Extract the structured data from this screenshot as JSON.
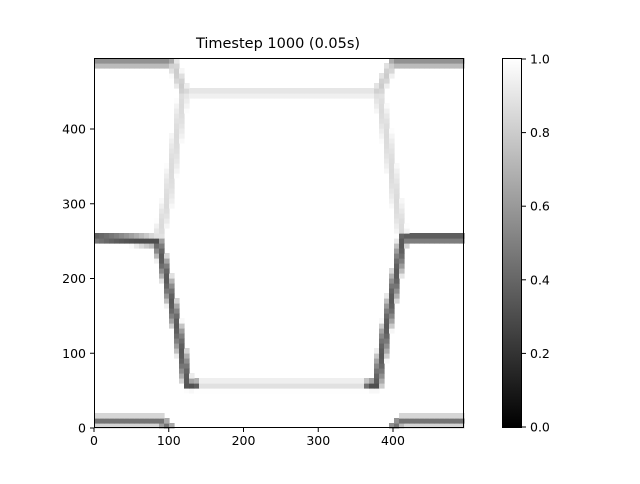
{
  "chart_data": {
    "type": "heatmap",
    "title": "Timestep 1000 (0.05s)",
    "xlabel": "",
    "ylabel": "",
    "xlim": [
      0,
      495
    ],
    "ylim": [
      0,
      495
    ],
    "x_ticks": [
      0,
      100,
      200,
      300,
      400
    ],
    "y_ticks": [
      0,
      100,
      200,
      300,
      400
    ],
    "colormap": "gray",
    "colorbar": {
      "range": [
        0.0,
        1.0
      ],
      "ticks": [
        0.0,
        0.2,
        0.4,
        0.6,
        0.8,
        1.0
      ],
      "tick_labels": [
        "0.0",
        "0.2",
        "0.4",
        "0.6",
        "0.8",
        "1.0"
      ]
    },
    "background_value": 1.0,
    "grain_boundaries": [
      {
        "points": [
          [
            0,
            10
          ],
          [
            90,
            10
          ],
          [
            100,
            0
          ]
        ],
        "min_value": 0.45
      },
      {
        "points": [
          [
            495,
            10
          ],
          [
            410,
            10
          ],
          [
            400,
            0
          ]
        ],
        "min_value": 0.45
      },
      {
        "points": [
          [
            0,
            255
          ],
          [
            85,
            250
          ]
        ],
        "min_value": 0.3
      },
      {
        "points": [
          [
            495,
            255
          ],
          [
            413,
            255
          ]
        ],
        "min_value": 0.3
      },
      {
        "points": [
          [
            85,
            250
          ],
          [
            95,
            210
          ],
          [
            112,
            130
          ],
          [
            125,
            58
          ]
        ],
        "min_value": 0.35
      },
      {
        "points": [
          [
            413,
            255
          ],
          [
            405,
            210
          ],
          [
            390,
            130
          ],
          [
            378,
            58
          ]
        ],
        "min_value": 0.35
      },
      {
        "points": [
          [
            125,
            58
          ],
          [
            378,
            58
          ]
        ],
        "min_value": 0.88
      },
      {
        "points": [
          [
            125,
            58
          ],
          [
            135,
            58
          ]
        ],
        "min_value": 0.3
      },
      {
        "points": [
          [
            368,
            58
          ],
          [
            378,
            58
          ]
        ],
        "min_value": 0.3
      },
      {
        "points": [
          [
            85,
            250
          ],
          [
            97,
            300
          ],
          [
            112,
            400
          ],
          [
            120,
            450
          ]
        ],
        "min_value": 0.86
      },
      {
        "points": [
          [
            413,
            255
          ],
          [
            405,
            300
          ],
          [
            390,
            400
          ],
          [
            380,
            450
          ]
        ],
        "min_value": 0.86
      },
      {
        "points": [
          [
            120,
            450
          ],
          [
            380,
            450
          ]
        ],
        "min_value": 0.9
      },
      {
        "points": [
          [
            120,
            450
          ],
          [
            103,
            495
          ]
        ],
        "min_value": 0.8
      },
      {
        "points": [
          [
            380,
            450
          ],
          [
            402,
            495
          ]
        ],
        "min_value": 0.8
      },
      {
        "points": [
          [
            0,
            490
          ],
          [
            100,
            490
          ]
        ],
        "min_value": 0.55
      },
      {
        "points": [
          [
            402,
            490
          ],
          [
            495,
            490
          ]
        ],
        "min_value": 0.55
      }
    ]
  }
}
